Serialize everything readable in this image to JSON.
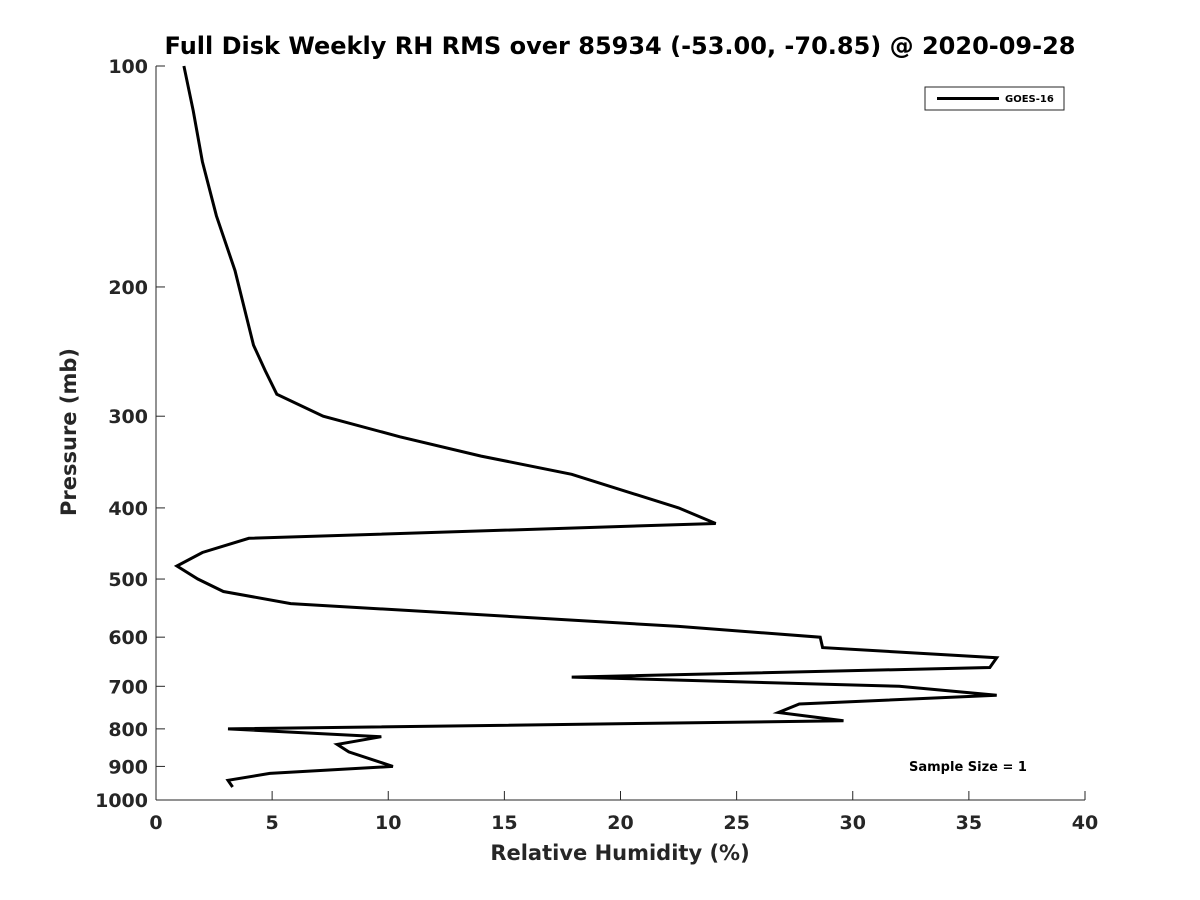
{
  "chart_data": {
    "type": "line",
    "title": "Full Disk Weekly RH RMS over 85934 (-53.00, -70.85) @ 2020-09-28",
    "xlabel": "Relative Humidity (%)",
    "ylabel": "Pressure (mb)",
    "xlim": [
      0,
      40
    ],
    "ylim": [
      100,
      1000
    ],
    "yscale": "log",
    "y_reversed": true,
    "x_ticks": [
      0,
      5,
      10,
      15,
      20,
      25,
      30,
      35,
      40
    ],
    "y_ticks": [
      100,
      200,
      300,
      400,
      500,
      600,
      700,
      800,
      900,
      1000
    ],
    "grid": false,
    "legend_position": "top-right",
    "annotation": "Sample Size = 1",
    "series": [
      {
        "name": "GOES-16",
        "color": "#000000",
        "points": [
          {
            "x": 1.2,
            "y": 100
          },
          {
            "x": 1.6,
            "y": 115
          },
          {
            "x": 2.0,
            "y": 135
          },
          {
            "x": 2.6,
            "y": 160
          },
          {
            "x": 3.4,
            "y": 190
          },
          {
            "x": 3.9,
            "y": 220
          },
          {
            "x": 4.2,
            "y": 240
          },
          {
            "x": 4.7,
            "y": 260
          },
          {
            "x": 5.2,
            "y": 280
          },
          {
            "x": 7.2,
            "y": 300
          },
          {
            "x": 10.5,
            "y": 320
          },
          {
            "x": 14.0,
            "y": 340
          },
          {
            "x": 17.9,
            "y": 360
          },
          {
            "x": 22.5,
            "y": 400
          },
          {
            "x": 24.1,
            "y": 420
          },
          {
            "x": 4.0,
            "y": 440
          },
          {
            "x": 2.0,
            "y": 460
          },
          {
            "x": 0.9,
            "y": 480
          },
          {
            "x": 1.8,
            "y": 500
          },
          {
            "x": 2.9,
            "y": 520
          },
          {
            "x": 5.8,
            "y": 540
          },
          {
            "x": 22.5,
            "y": 580
          },
          {
            "x": 28.6,
            "y": 600
          },
          {
            "x": 28.7,
            "y": 620
          },
          {
            "x": 36.2,
            "y": 640
          },
          {
            "x": 35.9,
            "y": 660
          },
          {
            "x": 17.9,
            "y": 680
          },
          {
            "x": 32.0,
            "y": 700
          },
          {
            "x": 36.2,
            "y": 720
          },
          {
            "x": 27.7,
            "y": 740
          },
          {
            "x": 26.8,
            "y": 760
          },
          {
            "x": 29.6,
            "y": 780
          },
          {
            "x": 3.1,
            "y": 800
          },
          {
            "x": 9.7,
            "y": 820
          },
          {
            "x": 7.8,
            "y": 840
          },
          {
            "x": 8.3,
            "y": 860
          },
          {
            "x": 10.2,
            "y": 900
          },
          {
            "x": 4.9,
            "y": 920
          },
          {
            "x": 3.1,
            "y": 940
          },
          {
            "x": 3.3,
            "y": 960
          }
        ]
      }
    ]
  }
}
